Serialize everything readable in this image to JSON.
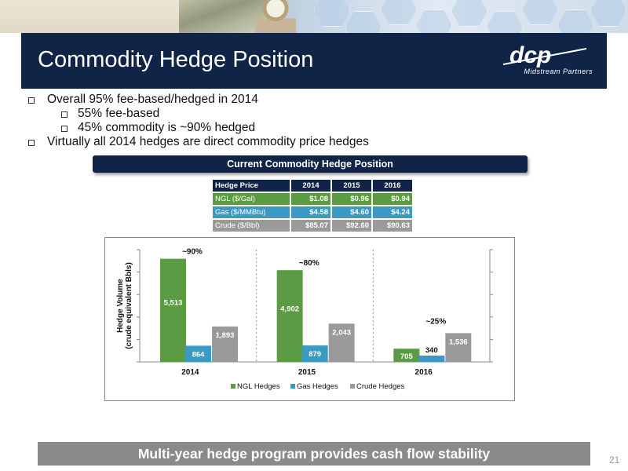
{
  "slide": {
    "title": "Commodity Hedge Position",
    "logo": {
      "mark": "dcp",
      "subtitle": "Midstream Partners"
    },
    "bullets": [
      {
        "text": "Overall 95% fee-based/hedged in 2014",
        "level": 1
      },
      {
        "text": "55% fee-based",
        "level": 2
      },
      {
        "text": "45% commodity is ~90% hedged",
        "level": 2
      },
      {
        "text": "Virtually all 2014 hedges are direct commodity price hedges",
        "level": 1
      }
    ],
    "section_header": "Current Commodity Hedge Position",
    "table": {
      "headers": [
        "Hedge Price",
        "2014",
        "2015",
        "2016"
      ],
      "rows": [
        {
          "label": "NGL ($/Gal)",
          "values": [
            "$1.08",
            "$0.96",
            "$0.94"
          ],
          "color": "#5b9b43"
        },
        {
          "label": "Gas ($/MMBtu)",
          "values": [
            "$4.58",
            "$4.60",
            "$4.24"
          ],
          "color": "#3a9ac3"
        },
        {
          "label": "Crude ($/Bbl)",
          "values": [
            "$85.07",
            "$92.60",
            "$90.63"
          ],
          "color": "#9a9a9a"
        }
      ]
    },
    "footer": "Multi-year hedge program provides cash flow stability",
    "page_number": "21"
  },
  "chart_data": {
    "type": "bar",
    "ylabel": "Hedge Volume (crude equivalent Bbls)",
    "categories": [
      "2014",
      "2015",
      "2016"
    ],
    "series": [
      {
        "name": "NGL Hedges",
        "values": [
          5513,
          4902,
          705
        ],
        "color": "#5b9b43"
      },
      {
        "name": "Gas Hedges",
        "values": [
          864,
          879,
          340
        ],
        "color": "#3a9ac3"
      },
      {
        "name": "Crude Hedges",
        "values": [
          1893,
          2043,
          1536
        ],
        "color": "#9a9a9a"
      }
    ],
    "data_labels": [
      [
        "5,513",
        "864",
        "1,893"
      ],
      [
        "4,902",
        "879",
        "2,043"
      ],
      [
        "705",
        "340",
        "1,536"
      ]
    ],
    "annotations": [
      "~90%",
      "~80%",
      "~25%"
    ],
    "ylim": [
      0,
      6000
    ],
    "legend": "bottom"
  }
}
